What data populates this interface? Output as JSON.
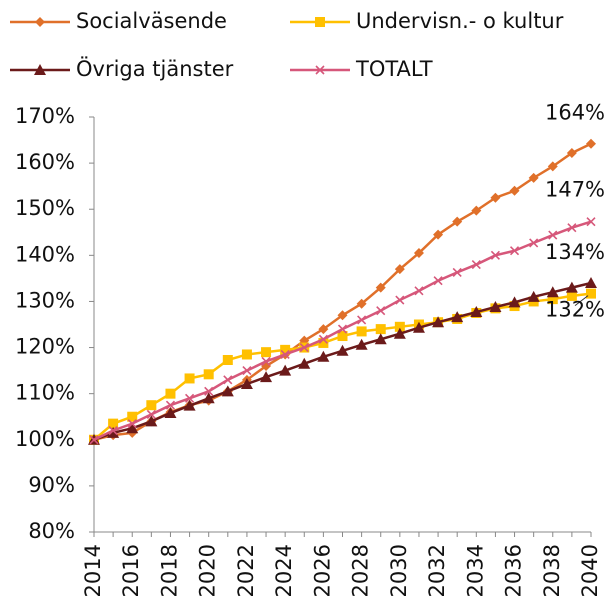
{
  "chart_data": {
    "type": "line",
    "x": [
      2014,
      2015,
      2016,
      2017,
      2018,
      2019,
      2020,
      2021,
      2022,
      2023,
      2024,
      2025,
      2026,
      2027,
      2028,
      2029,
      2030,
      2031,
      2032,
      2033,
      2034,
      2035,
      2036,
      2037,
      2038,
      2039,
      2040
    ],
    "series": [
      {
        "name": "Socialväsende",
        "color": "#e0702a",
        "marker": "diamond",
        "values": [
          100,
          101,
          101.5,
          104,
          106,
          107.5,
          108.5,
          110.5,
          113,
          116,
          118.5,
          121.5,
          124,
          127,
          129.5,
          133,
          137,
          140.5,
          144.5,
          147.3,
          149.7,
          152.5,
          154,
          156.8,
          159.3,
          162.2,
          164.2
        ],
        "value_labels": [
          null,
          null,
          null,
          null,
          null,
          null,
          null,
          null,
          null,
          null,
          null,
          null,
          null,
          null,
          null,
          null,
          null,
          null,
          null,
          null,
          null,
          null,
          null,
          null,
          null,
          null,
          "164%"
        ]
      },
      {
        "name": "Undervisn.- o kultur",
        "color": "#ffc000",
        "marker": "square",
        "values": [
          100,
          103.5,
          105,
          107.5,
          110,
          113.3,
          114.2,
          117.3,
          118.5,
          119,
          119.5,
          120,
          121,
          122.5,
          123.5,
          124,
          124.5,
          125,
          125.5,
          126.2,
          127.5,
          128.5,
          129,
          130,
          130.5,
          131.2,
          131.7
        ],
        "value_labels": [
          null,
          null,
          null,
          null,
          null,
          null,
          null,
          null,
          null,
          null,
          null,
          null,
          null,
          null,
          null,
          null,
          null,
          null,
          null,
          null,
          null,
          null,
          null,
          null,
          null,
          null,
          "132%"
        ]
      },
      {
        "name": "Övriga tjänster",
        "color": "#6b1a1a",
        "marker": "triangle",
        "values": [
          100,
          101.5,
          102.5,
          104,
          105.8,
          107.4,
          109,
          110.5,
          112.1,
          113.6,
          115,
          116.5,
          118,
          119.3,
          120.6,
          121.8,
          123,
          124.3,
          125.5,
          126.6,
          127.7,
          128.8,
          129.8,
          131,
          132,
          133,
          134
        ],
        "value_labels": [
          null,
          null,
          null,
          null,
          null,
          null,
          null,
          null,
          null,
          null,
          null,
          null,
          null,
          null,
          null,
          null,
          null,
          null,
          null,
          null,
          null,
          null,
          null,
          null,
          null,
          null,
          "134%"
        ]
      },
      {
        "name": "TOTALT",
        "color": "#d6577a",
        "marker": "x",
        "values": [
          100,
          102,
          103.5,
          105.5,
          107.5,
          109,
          110.5,
          113,
          115,
          117,
          118.5,
          120,
          121.8,
          124,
          126,
          128,
          130.3,
          132.3,
          134.5,
          136.3,
          138,
          140,
          141,
          142.7,
          144.4,
          146,
          147.3
        ],
        "value_labels": [
          null,
          null,
          null,
          null,
          null,
          null,
          null,
          null,
          null,
          null,
          null,
          null,
          null,
          null,
          null,
          null,
          null,
          null,
          null,
          null,
          null,
          null,
          null,
          null,
          null,
          null,
          "147%"
        ]
      }
    ],
    "xlim": [
      2014,
      2040
    ],
    "xticks": [
      2014,
      2016,
      2018,
      2020,
      2022,
      2024,
      2026,
      2028,
      2030,
      2032,
      2034,
      2036,
      2038,
      2040
    ],
    "ylim": [
      80,
      170
    ],
    "yticks": [
      {
        "value": 80,
        "label": "80%"
      },
      {
        "value": 90,
        "label": "90%"
      },
      {
        "value": 100,
        "label": "100%"
      },
      {
        "value": 110,
        "label": "110%"
      },
      {
        "value": 120,
        "label": "120%"
      },
      {
        "value": 130,
        "label": "130%"
      },
      {
        "value": 140,
        "label": "140%"
      },
      {
        "value": 150,
        "label": "150%"
      },
      {
        "value": 160,
        "label": "160%"
      },
      {
        "value": 170,
        "label": "170%"
      }
    ],
    "grid": false,
    "legend": "top"
  }
}
